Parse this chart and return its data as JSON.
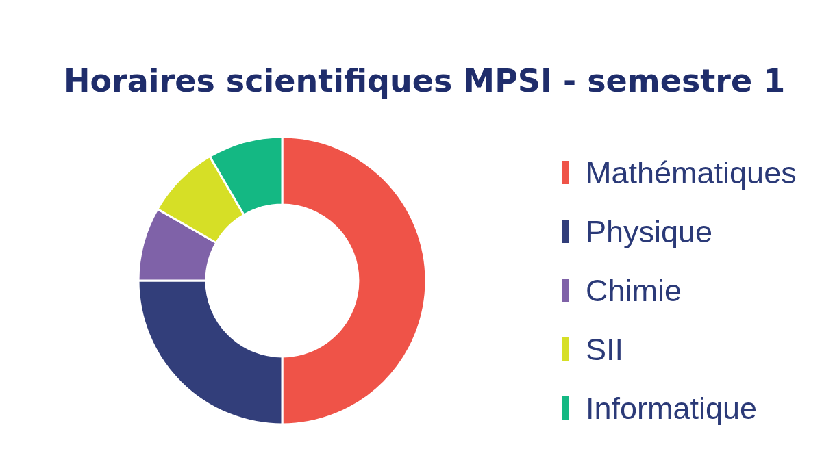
{
  "chart_data": {
    "type": "donut",
    "title": "Horaires scientifiques MPSI - semestre 1",
    "categories": [
      "Mathématiques",
      "Physique",
      "Chimie",
      "SII",
      "Informatique"
    ],
    "values": [
      50,
      25,
      8.3,
      8.3,
      8.4
    ],
    "colors": [
      "#ef5348",
      "#323e7a",
      "#7f62a8",
      "#d6df26",
      "#14b883"
    ],
    "legend": "right"
  }
}
